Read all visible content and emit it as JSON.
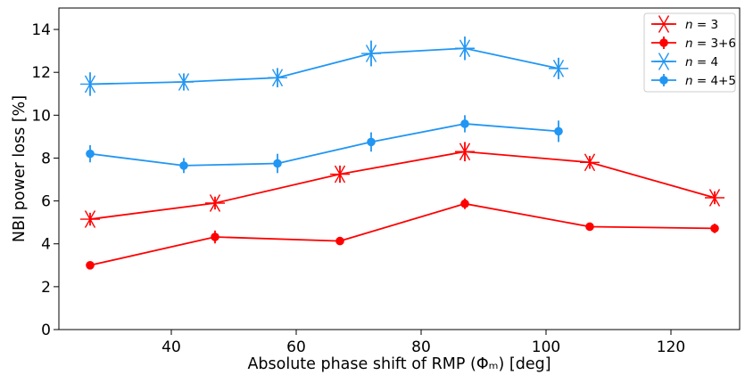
{
  "chart_data": {
    "type": "line",
    "title": "",
    "xlabel": "Absolute phase shift of RMP (Φₘ) [deg]",
    "ylabel": "NBI power loss [%]",
    "xlim": [
      22,
      131
    ],
    "ylim": [
      0,
      15
    ],
    "x_ticks": [
      40,
      60,
      80,
      100,
      120
    ],
    "y_ticks": [
      0,
      2,
      4,
      6,
      8,
      10,
      12,
      14
    ],
    "x_tick_labels": [
      "40",
      "60",
      "80",
      "100",
      "120"
    ],
    "y_tick_labels": [
      "0",
      "2",
      "4",
      "6",
      "8",
      "10",
      "12",
      "14"
    ],
    "grid": false,
    "legend_position": "top-right",
    "series": [
      {
        "name": "n = 3",
        "legend_label": {
          "italic": "n",
          "rest": " = 3"
        },
        "color": "#ff0000",
        "marker": "x-star",
        "x": [
          27,
          47,
          67,
          87,
          107,
          127
        ],
        "y": [
          5.15,
          5.9,
          7.25,
          8.3,
          7.8,
          6.15
        ],
        "err": [
          0.3,
          0.3,
          0.4,
          0.45,
          0.3,
          0.3
        ]
      },
      {
        "name": "n = 3+6",
        "legend_label": {
          "italic": "n",
          "rest": " = 3+6"
        },
        "color": "#ff0000",
        "marker": "dot",
        "x": [
          27,
          47,
          67,
          87,
          107,
          127
        ],
        "y": [
          3.0,
          4.32,
          4.13,
          5.87,
          4.8,
          4.72
        ],
        "err": [
          0.1,
          0.3,
          0.1,
          0.25,
          0.15,
          0.22
        ]
      },
      {
        "name": "n = 4",
        "legend_label": {
          "italic": "n",
          "rest": " = 4"
        },
        "color": "#2196f3",
        "marker": "x-star",
        "x": [
          27,
          42,
          57,
          72,
          87,
          102
        ],
        "y": [
          11.45,
          11.55,
          11.75,
          12.88,
          13.12,
          12.18
        ],
        "err": [
          0.55,
          0.4,
          0.45,
          0.6,
          0.55,
          0.5
        ]
      },
      {
        "name": "n = 4+5",
        "legend_label": {
          "italic": "n",
          "rest": " = 4+5"
        },
        "color": "#2196f3",
        "marker": "dot",
        "x": [
          27,
          42,
          57,
          72,
          87,
          102
        ],
        "y": [
          8.2,
          7.65,
          7.75,
          8.75,
          9.6,
          9.25
        ],
        "err": [
          0.4,
          0.35,
          0.45,
          0.45,
          0.4,
          0.5
        ]
      }
    ]
  }
}
